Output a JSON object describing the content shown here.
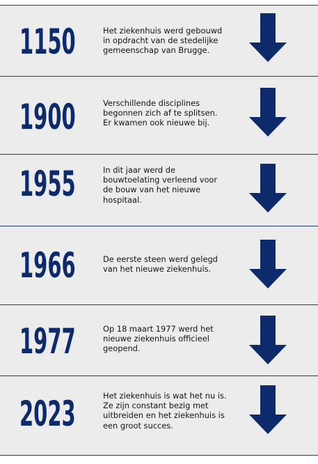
{
  "colors": {
    "accent": "#0d2a6b",
    "arrow": "#0d2a6b",
    "divider": "#1f3a7a",
    "panel": "#ececec",
    "text": "#141414"
  },
  "timeline": [
    {
      "year": "1150",
      "text": "Het ziekenhuis werd gebouwd\nin opdracht van de stedelijke\ngemeenschap van Brugge.",
      "icon": "arrow-down-icon"
    },
    {
      "year": "1900",
      "text": "Verschillende disciplines\nbegonnen zich af te splitsen.\nEr kwamen ook nieuwe bij.",
      "icon": "arrow-down-icon"
    },
    {
      "year": "1955",
      "text": "In dit jaar werd de\nbouwtoelating verleend voor\nde bouw van het nieuwe\nhospitaal.",
      "icon": "arrow-down-icon"
    },
    {
      "year": "1966",
      "text": "De eerste steen werd gelegd\nvan het nieuwe ziekenhuis.",
      "icon": "arrow-down-icon"
    },
    {
      "year": "1977",
      "text": "Op 18 maart 1977 werd het\nnieuwe ziekenhuis officieel\ngeopend.",
      "icon": "arrow-down-icon"
    },
    {
      "year": "2023",
      "text": "Het ziekenhuis is wat het nu is.\nZe zijn constant bezig met\nuitbreiden en het ziekenhuis is\neen groot succes.",
      "icon": "arrow-down-icon"
    }
  ]
}
